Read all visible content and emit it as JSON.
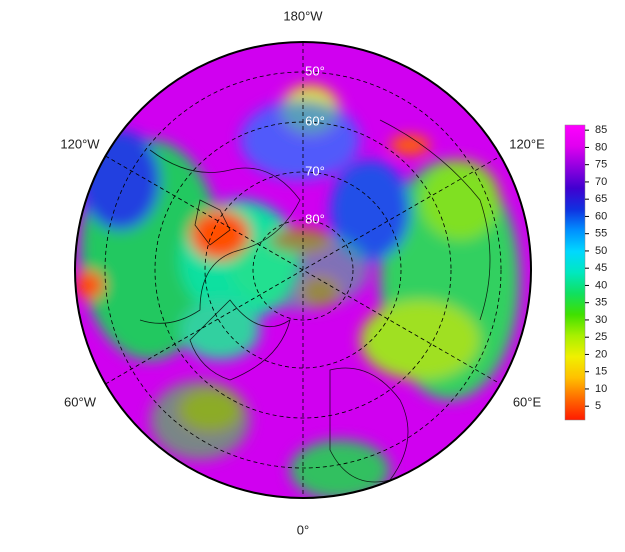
{
  "map": {
    "type": "polar-stereographic",
    "longitude_labels": [
      "180°W",
      "120°E",
      "60°E",
      "0°",
      "60°W",
      "120°W"
    ],
    "latitude_labels": [
      "50°",
      "60°",
      "70°",
      "80°"
    ],
    "colorbar": {
      "range": [
        1,
        86.5
      ],
      "ticks": [
        5,
        10,
        15,
        20,
        25,
        30,
        35,
        40,
        45,
        50,
        55,
        60,
        65,
        70,
        75,
        80,
        85
      ],
      "colors": [
        "#ff1a00",
        "#ff6a00",
        "#ffc000",
        "#f0f000",
        "#a8f000",
        "#40e000",
        "#10e060",
        "#00e8c0",
        "#00d8ff",
        "#0090ff",
        "#1030e0",
        "#4000d0",
        "#9000e0",
        "#e000f0",
        "#ff00ff"
      ]
    }
  }
}
